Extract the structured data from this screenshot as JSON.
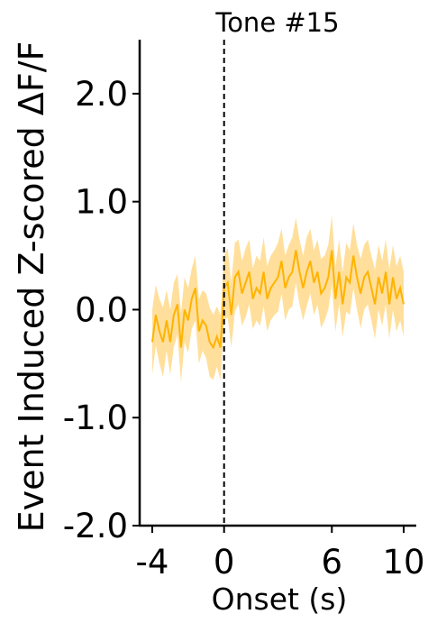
{
  "chart_data": {
    "type": "line",
    "title": "Tone #15",
    "xlabel": "Onset (s)",
    "ylabel": "Event Induced Z-scored ΔF/F",
    "xlim": [
      -4.7,
      10.7
    ],
    "ylim": [
      -2.0,
      2.5
    ],
    "x_ticks": [
      -4,
      0,
      6,
      10
    ],
    "x_tick_labels": [
      "-4",
      "0",
      "6",
      "10"
    ],
    "y_ticks": [
      -2.0,
      -1.0,
      0.0,
      1.0,
      2.0
    ],
    "y_tick_labels": [
      "-2.0",
      "-1.0",
      "0.0",
      "1.0",
      "2.0"
    ],
    "event_line_x": 0,
    "grid": false,
    "legend": "none",
    "colors": {
      "line": "#ffb300",
      "band": "#ffd98a",
      "event_line": "#000000"
    },
    "series": [
      {
        "x": [
          -4.0,
          -3.8,
          -3.6,
          -3.4,
          -3.2,
          -3.0,
          -2.8,
          -2.6,
          -2.4,
          -2.2,
          -2.0,
          -1.8,
          -1.6,
          -1.4,
          -1.2,
          -1.0,
          -0.8,
          -0.6,
          -0.4,
          -0.2,
          0.0,
          0.2,
          0.4,
          0.6,
          0.8,
          1.0,
          1.2,
          1.4,
          1.6,
          1.8,
          2.0,
          2.2,
          2.4,
          2.6,
          2.8,
          3.0,
          3.2,
          3.4,
          3.6,
          3.8,
          4.0,
          4.2,
          4.4,
          4.6,
          4.8,
          5.0,
          5.2,
          5.4,
          5.6,
          5.8,
          6.0,
          6.2,
          6.4,
          6.6,
          6.8,
          7.0,
          7.2,
          7.4,
          7.6,
          7.8,
          8.0,
          8.2,
          8.4,
          8.6,
          8.8,
          9.0,
          9.2,
          9.4,
          9.6,
          9.8,
          10.0
        ],
        "y": [
          -0.3,
          -0.05,
          -0.2,
          -0.3,
          -0.1,
          -0.3,
          -0.05,
          0.05,
          -0.35,
          0.0,
          -0.1,
          0.1,
          0.2,
          -0.2,
          -0.1,
          -0.15,
          -0.3,
          -0.35,
          -0.25,
          -0.35,
          0.2,
          0.25,
          -0.05,
          0.3,
          0.35,
          0.15,
          0.25,
          0.35,
          0.1,
          0.2,
          0.15,
          0.35,
          0.1,
          0.2,
          0.25,
          0.3,
          0.45,
          0.2,
          0.3,
          0.35,
          0.55,
          0.35,
          0.2,
          0.35,
          0.45,
          0.25,
          0.35,
          0.15,
          0.2,
          0.3,
          0.55,
          0.1,
          0.35,
          0.05,
          0.3,
          0.25,
          0.5,
          0.3,
          0.15,
          0.3,
          0.35,
          0.2,
          0.05,
          0.3,
          0.15,
          0.35,
          0.05,
          0.3,
          0.1,
          0.2,
          0.05
        ],
        "sem": [
          0.3,
          0.28,
          0.3,
          0.32,
          0.28,
          0.3,
          0.3,
          0.28,
          0.32,
          0.3,
          0.3,
          0.28,
          0.3,
          0.3,
          0.28,
          0.3,
          0.32,
          0.3,
          0.28,
          0.3,
          0.3,
          0.32,
          0.3,
          0.32,
          0.3,
          0.3,
          0.32,
          0.3,
          0.28,
          0.3,
          0.3,
          0.32,
          0.3,
          0.3,
          0.3,
          0.32,
          0.3,
          0.3,
          0.3,
          0.32,
          0.3,
          0.3,
          0.3,
          0.32,
          0.3,
          0.3,
          0.3,
          0.32,
          0.3,
          0.3,
          0.32,
          0.3,
          0.3,
          0.3,
          0.32,
          0.3,
          0.3,
          0.3,
          0.32,
          0.3,
          0.3,
          0.3,
          0.32,
          0.3,
          0.3,
          0.3,
          0.32,
          0.3,
          0.3,
          0.3,
          0.3
        ]
      }
    ]
  }
}
